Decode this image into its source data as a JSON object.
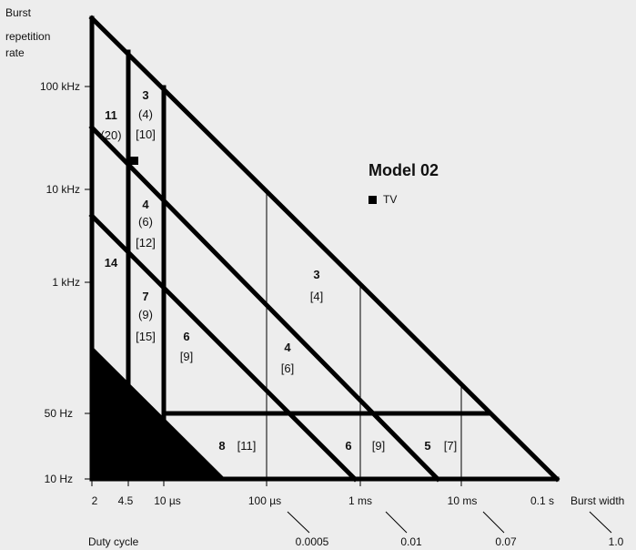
{
  "y_axis": {
    "title_lines": [
      "Burst",
      "repetition",
      "rate"
    ],
    "ticks": [
      "100 kHz",
      "10 kHz",
      "1 kHz",
      "50 Hz",
      "10 Hz"
    ]
  },
  "x_axis": {
    "ticks": [
      "2",
      "4.5",
      "10 µs",
      "100 µs",
      "1 ms",
      "10 ms",
      "0.1 s"
    ],
    "title": "Burst width"
  },
  "duty_cycle": {
    "label": "Duty cycle",
    "values": [
      "0.0005",
      "0.01",
      "0.07",
      "1.0"
    ]
  },
  "model": {
    "title": "Model 02",
    "legend": "TV"
  },
  "regions": {
    "r11": {
      "main": "11",
      "paren": "(20)"
    },
    "r3top": {
      "main": "3",
      "paren": "(4)",
      "bracket": "[10]"
    },
    "r4": {
      "main": "4",
      "paren": "(6)",
      "bracket": "[12]"
    },
    "r14": {
      "main": "14"
    },
    "r7": {
      "main": "7",
      "paren": "(9)",
      "bracket": "[15]"
    },
    "r6a": {
      "main": "6",
      "bracket": "[9]"
    },
    "r3mid": {
      "main": "3",
      "bracket": "[4]"
    },
    "r4mid": {
      "main": "4",
      "bracket": "[6]"
    },
    "r8": {
      "main": "8",
      "bracket": "[11]"
    },
    "r6b": {
      "main": "6",
      "bracket": "[9]"
    },
    "r5": {
      "main": "5",
      "bracket": "[7]"
    }
  }
}
